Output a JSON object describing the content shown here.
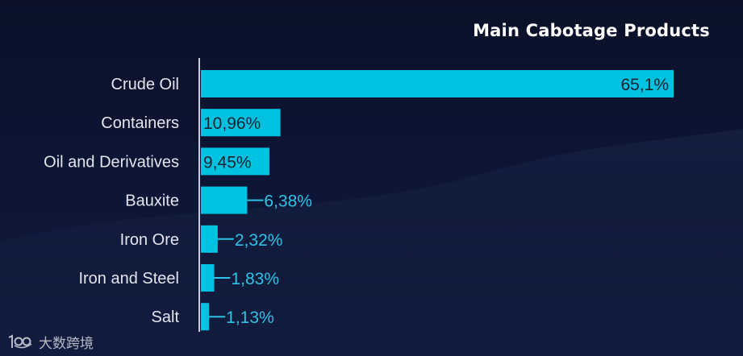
{
  "chart_data": {
    "type": "bar",
    "orientation": "horizontal",
    "title": "Main Cabotage Products",
    "categories": [
      "Crude Oil",
      "Containers",
      "Oil and Derivatives",
      "Bauxite",
      "Iron Ore",
      "Iron and Steel",
      "Salt"
    ],
    "values": [
      65.1,
      10.96,
      9.45,
      6.38,
      2.32,
      1.83,
      1.13
    ],
    "value_labels": [
      "65,1%",
      "10,96%",
      "9,45%",
      "6,38%",
      "2,32%",
      "1,83%",
      "1,13%"
    ],
    "unit": "%",
    "xlabel": "",
    "ylabel": "",
    "grid": false,
    "legend": "none",
    "colors": {
      "bar": "#00c2e0",
      "label_inside": "#1b2230",
      "label_outside": "#2ec3e6",
      "category_text": "#e4e6ee",
      "axis": "#c8ccd8"
    }
  },
  "watermark": {
    "logo": "1080-logo-icon",
    "text": "大数跨境"
  }
}
